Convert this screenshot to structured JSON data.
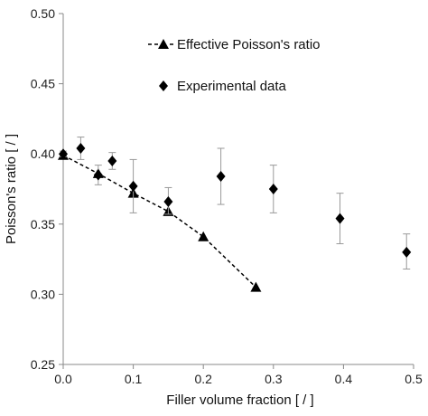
{
  "chart_data": {
    "type": "scatter",
    "title": "",
    "xlabel": "Filler volume fraction [ / ]",
    "ylabel": "Poisson's ratio [ / ]",
    "xlim": [
      0.0,
      0.5
    ],
    "ylim": [
      0.25,
      0.5
    ],
    "x_ticks": [
      "0.0",
      "0.1",
      "0.2",
      "0.3",
      "0.4",
      "0.5"
    ],
    "y_ticks": [
      "0.25",
      "0.30",
      "0.35",
      "0.40",
      "0.45",
      "0.50"
    ],
    "grid": false,
    "legend_position": "top-center",
    "series": [
      {
        "name": "Effective Poisson's ratio",
        "marker": "triangle",
        "line": "dashed",
        "color": "#000000",
        "x": [
          0.0,
          0.05,
          0.1,
          0.15,
          0.2,
          0.275
        ],
        "y": [
          0.399,
          0.386,
          0.372,
          0.359,
          0.341,
          0.305
        ]
      },
      {
        "name": "Experimental data",
        "marker": "diamond",
        "line": "none",
        "color": "#000000",
        "x": [
          0.0,
          0.025,
          0.05,
          0.07,
          0.1,
          0.15,
          0.225,
          0.3,
          0.395,
          0.49
        ],
        "y": [
          0.4,
          0.404,
          0.385,
          0.395,
          0.377,
          0.366,
          0.384,
          0.375,
          0.354,
          0.33
        ],
        "error_low": [
          0.398,
          0.396,
          0.378,
          0.389,
          0.358,
          0.357,
          0.364,
          0.358,
          0.336,
          0.318
        ],
        "error_high": [
          0.402,
          0.412,
          0.392,
          0.401,
          0.396,
          0.376,
          0.404,
          0.392,
          0.372,
          0.343
        ]
      }
    ],
    "axis_color": "#888888"
  }
}
